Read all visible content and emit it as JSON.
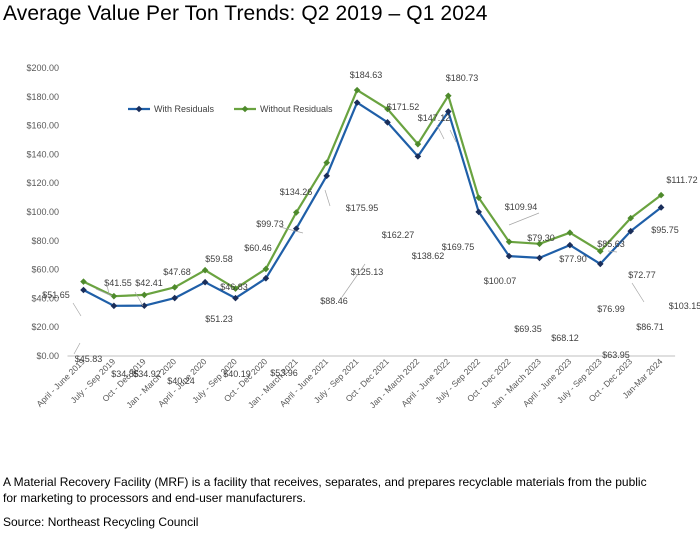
{
  "title": "Average Value Per Ton Trends: Q2 2019 – Q1 2024",
  "footnote": "A Material Recovery Facility (MRF) is a facility that receives, separates, and prepares recyclable materials from the public for marketing to processors and end-user manufacturers.",
  "source": "Source: Northeast Recycling Council",
  "chart_data": {
    "type": "line",
    "title": "",
    "xlabel": "",
    "ylabel": "",
    "ylim": [
      0,
      200
    ],
    "yticks": [
      "$0.00",
      "$20.00",
      "$40.00",
      "$60.00",
      "$80.00",
      "$100.00",
      "$120.00",
      "$140.00",
      "$160.00",
      "$180.00",
      "$200.00"
    ],
    "grid": false,
    "legend_position": "top-left",
    "categories": [
      "April - June 2019",
      "July - Sep 2019",
      "Oct - Dec 2019",
      "Jan - March 2020",
      "April - June 2020",
      "July - Sep 2020",
      "Oct - Dec 2020",
      "Jan - March 2021",
      "April - June 2021",
      "July - Sep 2021",
      "Oct - Dec 2021",
      "Jan - March 2022",
      "April - June 2022",
      "July - Sep 2022",
      "Oct - Dec 2022",
      "Jan - March 2023",
      "April - June 2023",
      "July - Sep 2023",
      "Oct - Dec 2023",
      "Jan-Mar 2024"
    ],
    "series": [
      {
        "name": "With Residuals",
        "color": "#1f5fa8",
        "marker_color": "#1a2e5a",
        "values": [
          45.83,
          34.85,
          34.92,
          40.24,
          51.23,
          40.19,
          53.96,
          88.46,
          125.13,
          175.95,
          162.27,
          138.62,
          169.75,
          100.07,
          69.35,
          68.12,
          76.99,
          63.95,
          86.71,
          103.15
        ],
        "labels": [
          "$45.83",
          "$34.85",
          "$34.92",
          "$40.24",
          "$51.23",
          "$40.19",
          "$53.96",
          "$88.46",
          "$125.13",
          "$175.95",
          "$162.27",
          "$138.62",
          "$169.75",
          "$100.07",
          "$69.35",
          "$68.12",
          "$76.99",
          "$63.95",
          "$86.71",
          "$103.15"
        ]
      },
      {
        "name": "Without Residuals",
        "color": "#6aa340",
        "marker_color": "#4e8a2c",
        "values": [
          51.65,
          41.55,
          42.41,
          47.68,
          59.58,
          46.83,
          60.46,
          99.73,
          134.26,
          184.63,
          171.52,
          147.12,
          180.73,
          109.94,
          79.3,
          77.9,
          85.63,
          72.77,
          95.75,
          111.72
        ],
        "labels": [
          "$51.65",
          "$41.55",
          "$42.41",
          "$47.68",
          "$59.58",
          "$46.83",
          "$60.46",
          "$99.73",
          "$134.26",
          "$184.63",
          "$171.52",
          "$147.12",
          "$180.73",
          "$109.94",
          "$79.30",
          "$77.90",
          "$85.63",
          "$72.77",
          "$95.75",
          "$111.72"
        ]
      }
    ]
  }
}
